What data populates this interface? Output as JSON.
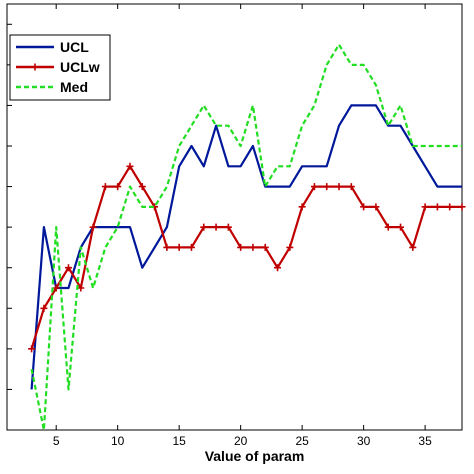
{
  "chart_data": {
    "type": "line",
    "title": "",
    "xlabel": "Value of param",
    "ylabel": "",
    "xlim": [
      1,
      38
    ],
    "ylim": [
      0,
      10.5
    ],
    "xticks": [
      5,
      10,
      15,
      20,
      25,
      30,
      35
    ],
    "yticks": [],
    "grid": false,
    "legend_position": "top-left",
    "series": [
      {
        "name": "UCL",
        "color": "#00189a",
        "style": "solid",
        "marker": "none",
        "x": [
          3,
          4,
          5,
          6,
          7,
          8,
          9,
          10,
          11,
          12,
          13,
          14,
          15,
          16,
          17,
          18,
          19,
          20,
          21,
          22,
          23,
          24,
          25,
          26,
          27,
          28,
          29,
          30,
          31,
          32,
          33,
          34,
          35,
          36,
          37,
          38
        ],
        "y": [
          1,
          5,
          3.5,
          3.5,
          4.5,
          5,
          5,
          5,
          5,
          4,
          4.5,
          5,
          6.5,
          7,
          6.5,
          7.5,
          6.5,
          6.5,
          7,
          6,
          6,
          6,
          6.5,
          6.5,
          6.5,
          7.5,
          8,
          8,
          8,
          7.5,
          7.5,
          7,
          6.5,
          6,
          6,
          6
        ]
      },
      {
        "name": "UCLw",
        "color": "#c00000",
        "style": "solid",
        "marker": "plus",
        "x": [
          3,
          4,
          5,
          6,
          7,
          8,
          9,
          10,
          11,
          12,
          13,
          14,
          15,
          16,
          17,
          18,
          19,
          20,
          21,
          22,
          23,
          24,
          25,
          26,
          27,
          28,
          29,
          30,
          31,
          32,
          33,
          34,
          35,
          36,
          37,
          38
        ],
        "y": [
          2,
          3,
          3.5,
          4,
          3.5,
          5,
          6,
          6,
          6.5,
          6,
          5.5,
          4.5,
          4.5,
          4.5,
          5,
          5,
          5,
          4.5,
          4.5,
          4.5,
          4,
          4.5,
          5.5,
          6,
          6,
          6,
          6,
          5.5,
          5.5,
          5,
          5,
          4.5,
          5.5,
          5.5,
          5.5,
          5.5
        ]
      },
      {
        "name": "Med",
        "color": "#22dd22",
        "style": "dashed",
        "marker": "none",
        "x": [
          3,
          4,
          5,
          6,
          7,
          8,
          9,
          10,
          11,
          12,
          13,
          14,
          15,
          16,
          17,
          18,
          19,
          20,
          21,
          22,
          23,
          24,
          25,
          26,
          27,
          28,
          29,
          30,
          31,
          32,
          33,
          34,
          35,
          36,
          37,
          38
        ],
        "y": [
          1.5,
          0,
          5,
          1,
          4.5,
          3.5,
          4.5,
          5,
          6,
          5.5,
          5.5,
          6,
          7,
          7.5,
          8,
          7.5,
          7.5,
          7,
          8,
          6,
          6.5,
          6.5,
          7.5,
          8,
          9,
          9.5,
          9,
          9,
          8.5,
          7.5,
          8,
          7,
          7,
          7,
          7,
          7
        ]
      }
    ]
  }
}
